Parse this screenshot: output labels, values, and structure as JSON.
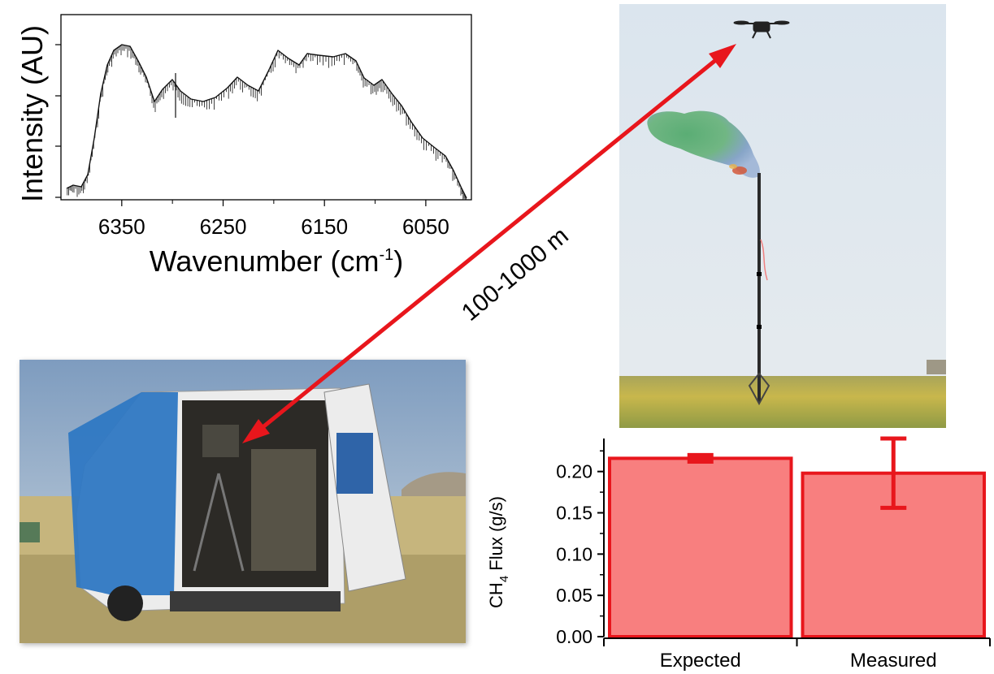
{
  "spectrum": {
    "ylabel": "Intensity (AU)",
    "xlabel_main": "Wavenumber (cm",
    "xlabel_sup": "-1",
    "xlabel_close": ")",
    "xlim": [
      6410,
      6005
    ],
    "tick_labels": [
      "6350",
      "6250",
      "6150",
      "6050"
    ],
    "colors": {
      "line": "#111111",
      "frame": "#000000"
    }
  },
  "distance_label": "100-1000 m",
  "arrow_color": "#e8161c",
  "colors": {
    "sky": "#dfe7ee",
    "field": "#b9ad52",
    "tarp": "#2f78c3",
    "van": "#ececec"
  },
  "chart_data": {
    "type": "bar",
    "categories": [
      "Expected",
      "Measured"
    ],
    "values": [
      0.216,
      0.198
    ],
    "errors": [
      0.004,
      0.042
    ],
    "ylabel_main": "CH",
    "ylabel_sub": "4",
    "ylabel_rest": " Flux (g/s)",
    "ylim": [
      0,
      0.24
    ],
    "yticks": [
      "0.00",
      "0.05",
      "0.10",
      "0.15",
      "0.20"
    ],
    "colors": {
      "fill": "#f87f7f",
      "edge": "#e8161c",
      "error": "#e8161c"
    }
  }
}
